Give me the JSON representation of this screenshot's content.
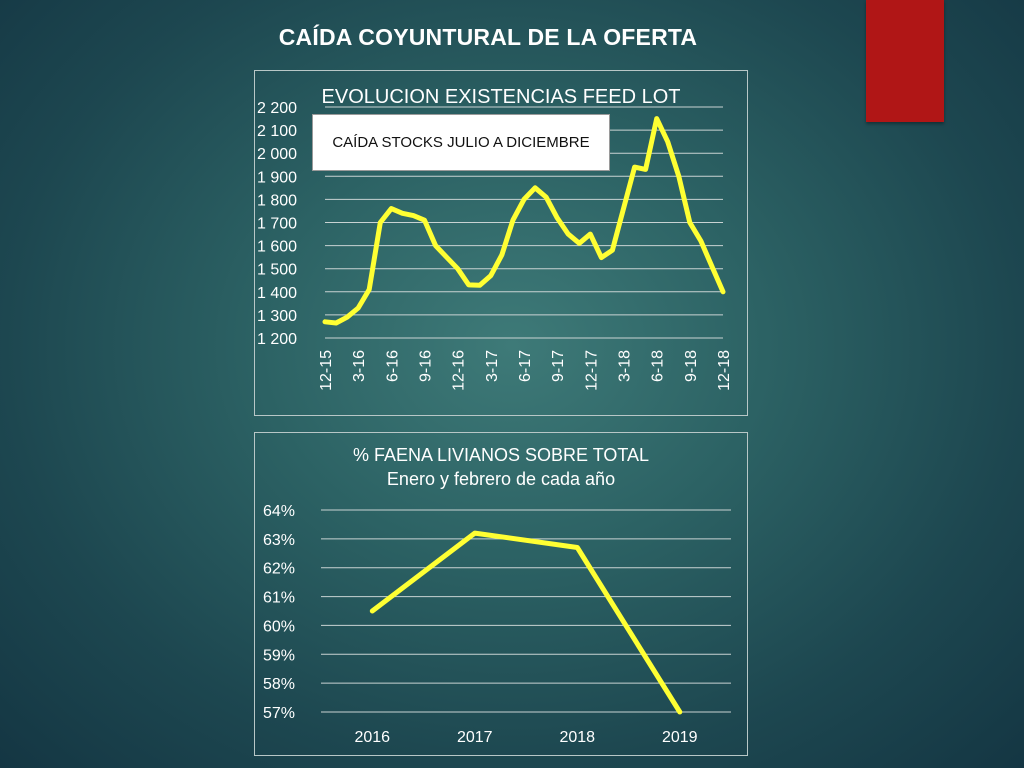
{
  "slide": {
    "title": "CAÍDA COYUNTURAL DE LA OFERTA",
    "accent_color": "#b01616"
  },
  "chart_data": [
    {
      "type": "line",
      "title": "EVOLUCION EXISTENCIAS FEED LOT",
      "annotation": "CAÍDA STOCKS JULIO A DICIEMBRE",
      "series_color": "#ffff33",
      "ylim": [
        1200,
        2200
      ],
      "yticks": [
        "1 200",
        "1 300",
        "1 400",
        "1 500",
        "1 600",
        "1 700",
        "1 800",
        "1 900",
        "2 000",
        "2 100",
        "2 200"
      ],
      "xticks": [
        "12-15",
        "3-16",
        "6-16",
        "9-16",
        "12-16",
        "3-17",
        "6-17",
        "9-17",
        "12-17",
        "3-18",
        "6-18",
        "9-18",
        "12-18"
      ],
      "x_months": [
        0,
        1,
        2,
        3,
        4,
        5,
        6,
        7,
        8,
        9,
        10,
        11,
        12,
        13,
        14,
        15,
        16,
        17,
        18,
        19,
        20,
        21,
        22,
        23,
        24,
        25,
        26,
        27,
        28,
        29,
        30,
        31,
        32,
        33,
        34,
        35,
        36
      ],
      "values": [
        1270,
        1265,
        1290,
        1330,
        1410,
        1700,
        1760,
        1740,
        1730,
        1710,
        1600,
        1550,
        1500,
        1430,
        1428,
        1470,
        1560,
        1710,
        1800,
        1850,
        1810,
        1720,
        1650,
        1610,
        1650,
        1548,
        1580,
        1760,
        1940,
        1930,
        2150,
        2050,
        1900,
        1700,
        1620,
        1510,
        1400
      ],
      "grid": true
    },
    {
      "type": "line",
      "title": "% FAENA LIVIANOS SOBRE TOTAL",
      "subtitle": "Enero y febrero de cada año",
      "series_color": "#ffff33",
      "ylim": [
        57,
        64
      ],
      "yticks": [
        "57%",
        "58%",
        "59%",
        "60%",
        "61%",
        "62%",
        "63%",
        "64%"
      ],
      "categories": [
        "2016",
        "2017",
        "2018",
        "2019"
      ],
      "values": [
        60.5,
        63.2,
        62.7,
        57.0
      ],
      "grid": true
    }
  ]
}
